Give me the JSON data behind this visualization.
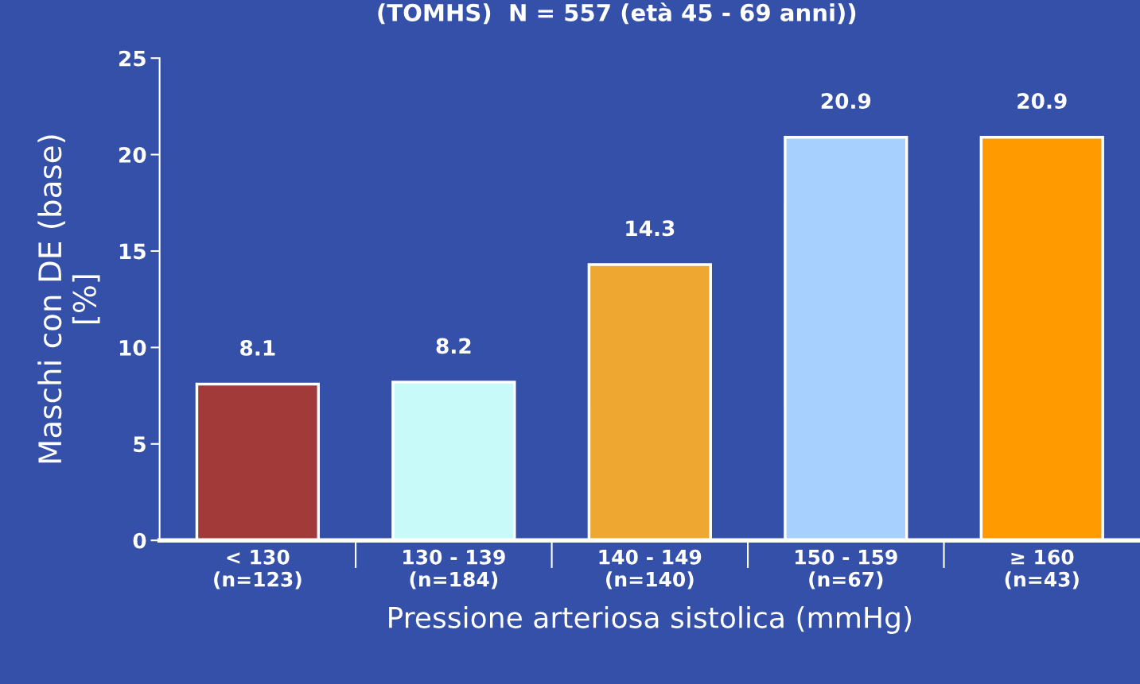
{
  "chart_data": {
    "type": "bar",
    "title": "(TOMHS)  N = 557 (età 45 - 69 anni))",
    "categories": [
      "< 130\n(n=123)",
      "130 - 139\n(n=184)",
      "140 - 149\n(n=140)",
      "150 - 159\n(n=67)",
      "≥ 160\n(n=43)"
    ],
    "values": [
      8.1,
      8.2,
      14.3,
      20.9,
      20.9
    ],
    "colors": [
      "#a33a3a",
      "#c8fafa",
      "#eea832",
      "#a8d0ff",
      "#ff9a00"
    ],
    "data_labels": true,
    "xlabel": "Pressione arteriosa sistolica (mmHg)",
    "ylabel": "Maschi con DE (base)\n[%]",
    "ylim": [
      0,
      25
    ],
    "yticks": [
      0,
      5,
      10,
      15,
      20,
      25
    ],
    "grid": false
  }
}
